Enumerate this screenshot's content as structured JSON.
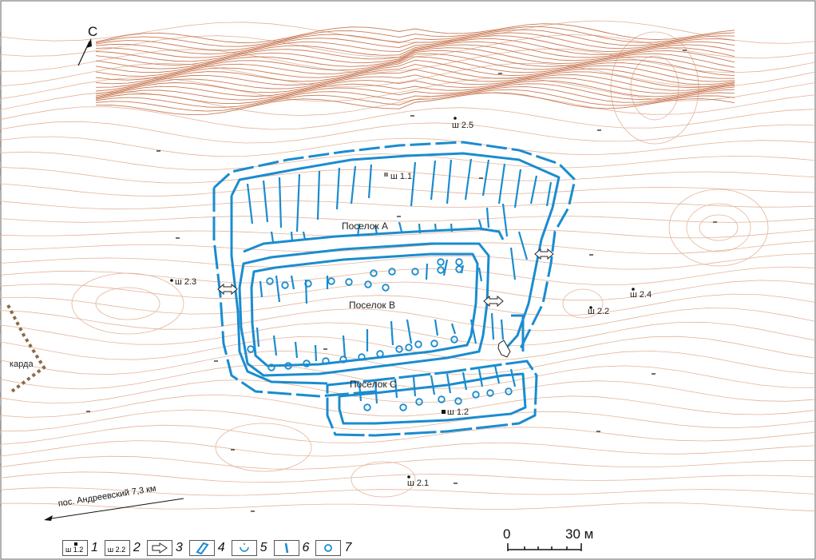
{
  "north_label": "С",
  "settlements": {
    "a": "Поселок А",
    "b": "Поселок B",
    "c": "Поселок C"
  },
  "pits": {
    "s11": "ш 1.1",
    "s12": "ш 1.2",
    "s21": "ш 2.1",
    "s22": "ш 2.2",
    "s23": "ш 2.3",
    "s24": "ш 2.4",
    "s25": "ш 2.5"
  },
  "side_label": "карда",
  "road_label": "пос. Андреевский 7,3 км",
  "scale": {
    "start": "0",
    "end": "30 м"
  },
  "legend": {
    "item1_text": "ш 1.2",
    "item1_num": "1",
    "item2_text": "ш 2.2",
    "item2_num": "2",
    "item3_num": "3",
    "item4_num": "4",
    "item5_num": "5",
    "item6_num": "6",
    "item7_num": "7"
  },
  "colors": {
    "contour": "#e3b49a",
    "contour_dense": "#c97a55",
    "feature": "#1a8ccf",
    "frame": "#666666"
  }
}
